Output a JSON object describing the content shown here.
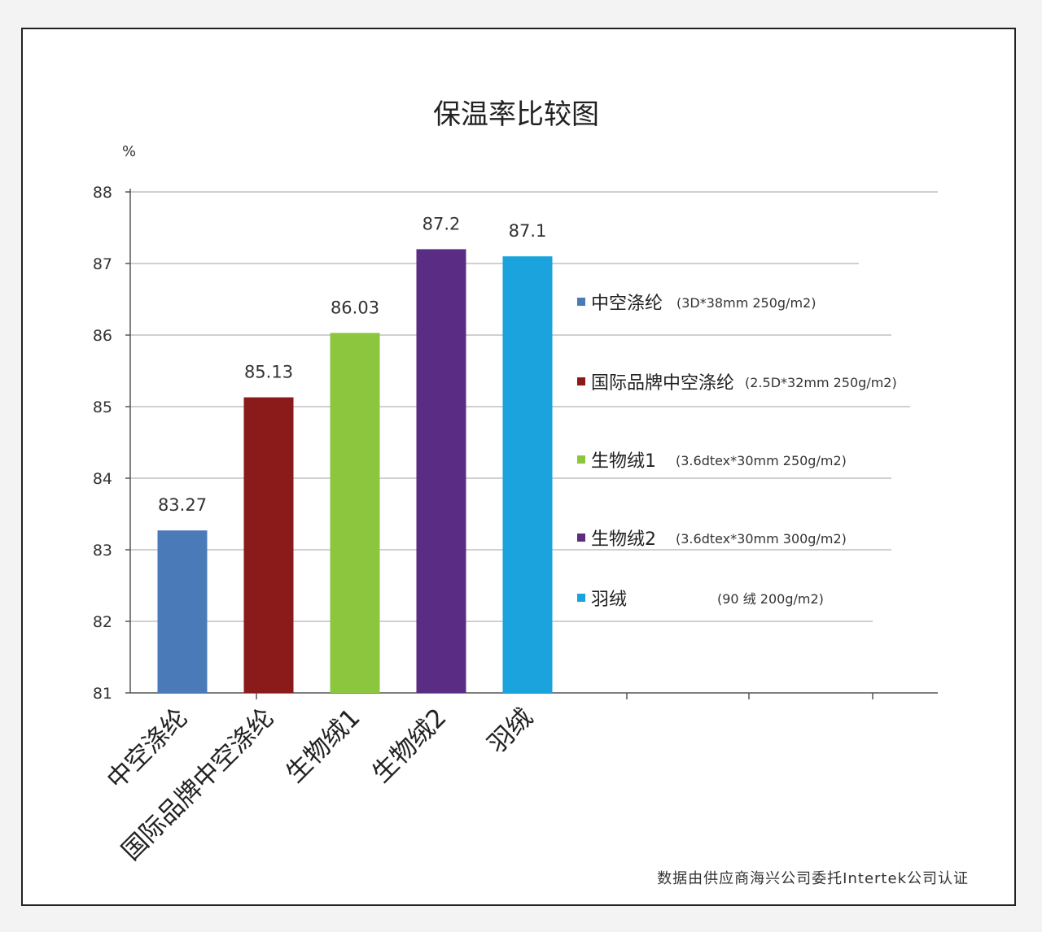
{
  "chart_data": {
    "type": "bar",
    "title": "保温率比较图",
    "unit_label": "%",
    "ylim": [
      81,
      88
    ],
    "yticks": [
      81,
      82,
      83,
      84,
      85,
      86,
      87,
      88
    ],
    "grid": true,
    "legend_position": "right",
    "categories": [
      "中空涤纶",
      "国际品牌中空涤纶",
      "生物绒1",
      "生物绒2",
      "羽绒"
    ],
    "values": [
      83.27,
      85.13,
      86.03,
      87.2,
      87.1
    ],
    "value_labels": [
      "83.27",
      "85.13",
      "86.03",
      "87.2",
      "87.1"
    ],
    "colors": [
      "#4a7ab8",
      "#8b1a1a",
      "#8cc63f",
      "#5b2c83",
      "#1aa3dc"
    ],
    "legend": [
      {
        "name": "中空涤纶",
        "spec": "(3D*38mm 250g/m2)",
        "color": "#4a7ab8"
      },
      {
        "name": "国际品牌中空涤纶",
        "spec": "(2.5D*32mm 250g/m2)",
        "color": "#8b1a1a"
      },
      {
        "name": "生物绒1",
        "spec": "(3.6dtex*30mm 250g/m2)",
        "color": "#8cc63f"
      },
      {
        "name": "生物绒2",
        "spec": "(3.6dtex*30mm 300g/m2)",
        "color": "#5b2c83"
      },
      {
        "name": "羽绒",
        "spec": "(90 绒   200g/m2)",
        "color": "#1aa3dc"
      }
    ],
    "footnote": "数据由供应商海兴公司委托Intertek公司认证"
  }
}
